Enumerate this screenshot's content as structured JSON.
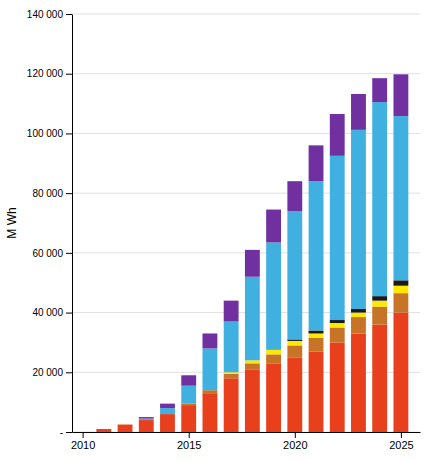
{
  "chart_data": {
    "type": "bar",
    "stacked": true,
    "x": [
      2011,
      2012,
      2013,
      2014,
      2015,
      2016,
      2017,
      2018,
      2019,
      2020,
      2021,
      2022,
      2023,
      2024,
      2025
    ],
    "series": [
      {
        "color": "#E8401C",
        "values": [
          1000,
          2500,
          4000,
          6000,
          9000,
          13000,
          18000,
          21000,
          23000,
          25000,
          27000,
          30000,
          33000,
          36000,
          40000
        ]
      },
      {
        "color": "#C87428",
        "values": [
          0,
          0,
          0,
          0,
          500,
          1000,
          1500,
          2000,
          3000,
          4000,
          4500,
          5000,
          5500,
          6000,
          6500
        ]
      },
      {
        "color": "#FFE800",
        "values": [
          0,
          0,
          0,
          0,
          0,
          0,
          500,
          1000,
          1500,
          1500,
          1500,
          1500,
          1500,
          2000,
          2500
        ]
      },
      {
        "color": "#1A1A1A",
        "values": [
          0,
          0,
          0,
          0,
          0,
          0,
          0,
          0,
          0,
          500,
          1000,
          1000,
          1200,
          1500,
          1800
        ]
      },
      {
        "color": "#40B0E0",
        "values": [
          0,
          0,
          500,
          2000,
          6000,
          14000,
          17000,
          28000,
          36000,
          43000,
          50000,
          55000,
          60000,
          65000,
          55000
        ]
      },
      {
        "color": "#7030A0",
        "values": [
          0,
          0,
          500,
          1500,
          3500,
          5000,
          7000,
          9000,
          11000,
          10000,
          12000,
          14000,
          12000,
          8000,
          14000
        ]
      }
    ],
    "ylabel": "M Wh",
    "xlim": [
      2009.5,
      2025.9
    ],
    "xticks": [
      2010,
      2015,
      2020,
      2025
    ],
    "ylim": [
      0,
      140000
    ],
    "yticks": [
      {
        "value": 0,
        "label": "-"
      },
      {
        "value": 20000,
        "label": "20 000"
      },
      {
        "value": 40000,
        "label": "40 000"
      },
      {
        "value": 60000,
        "label": "60 000"
      },
      {
        "value": 80000,
        "label": "80 000"
      },
      {
        "value": 100000,
        "label": "100 000"
      },
      {
        "value": 120000,
        "label": "120 000"
      },
      {
        "value": 140000,
        "label": "140 000"
      }
    ],
    "grid": true
  }
}
